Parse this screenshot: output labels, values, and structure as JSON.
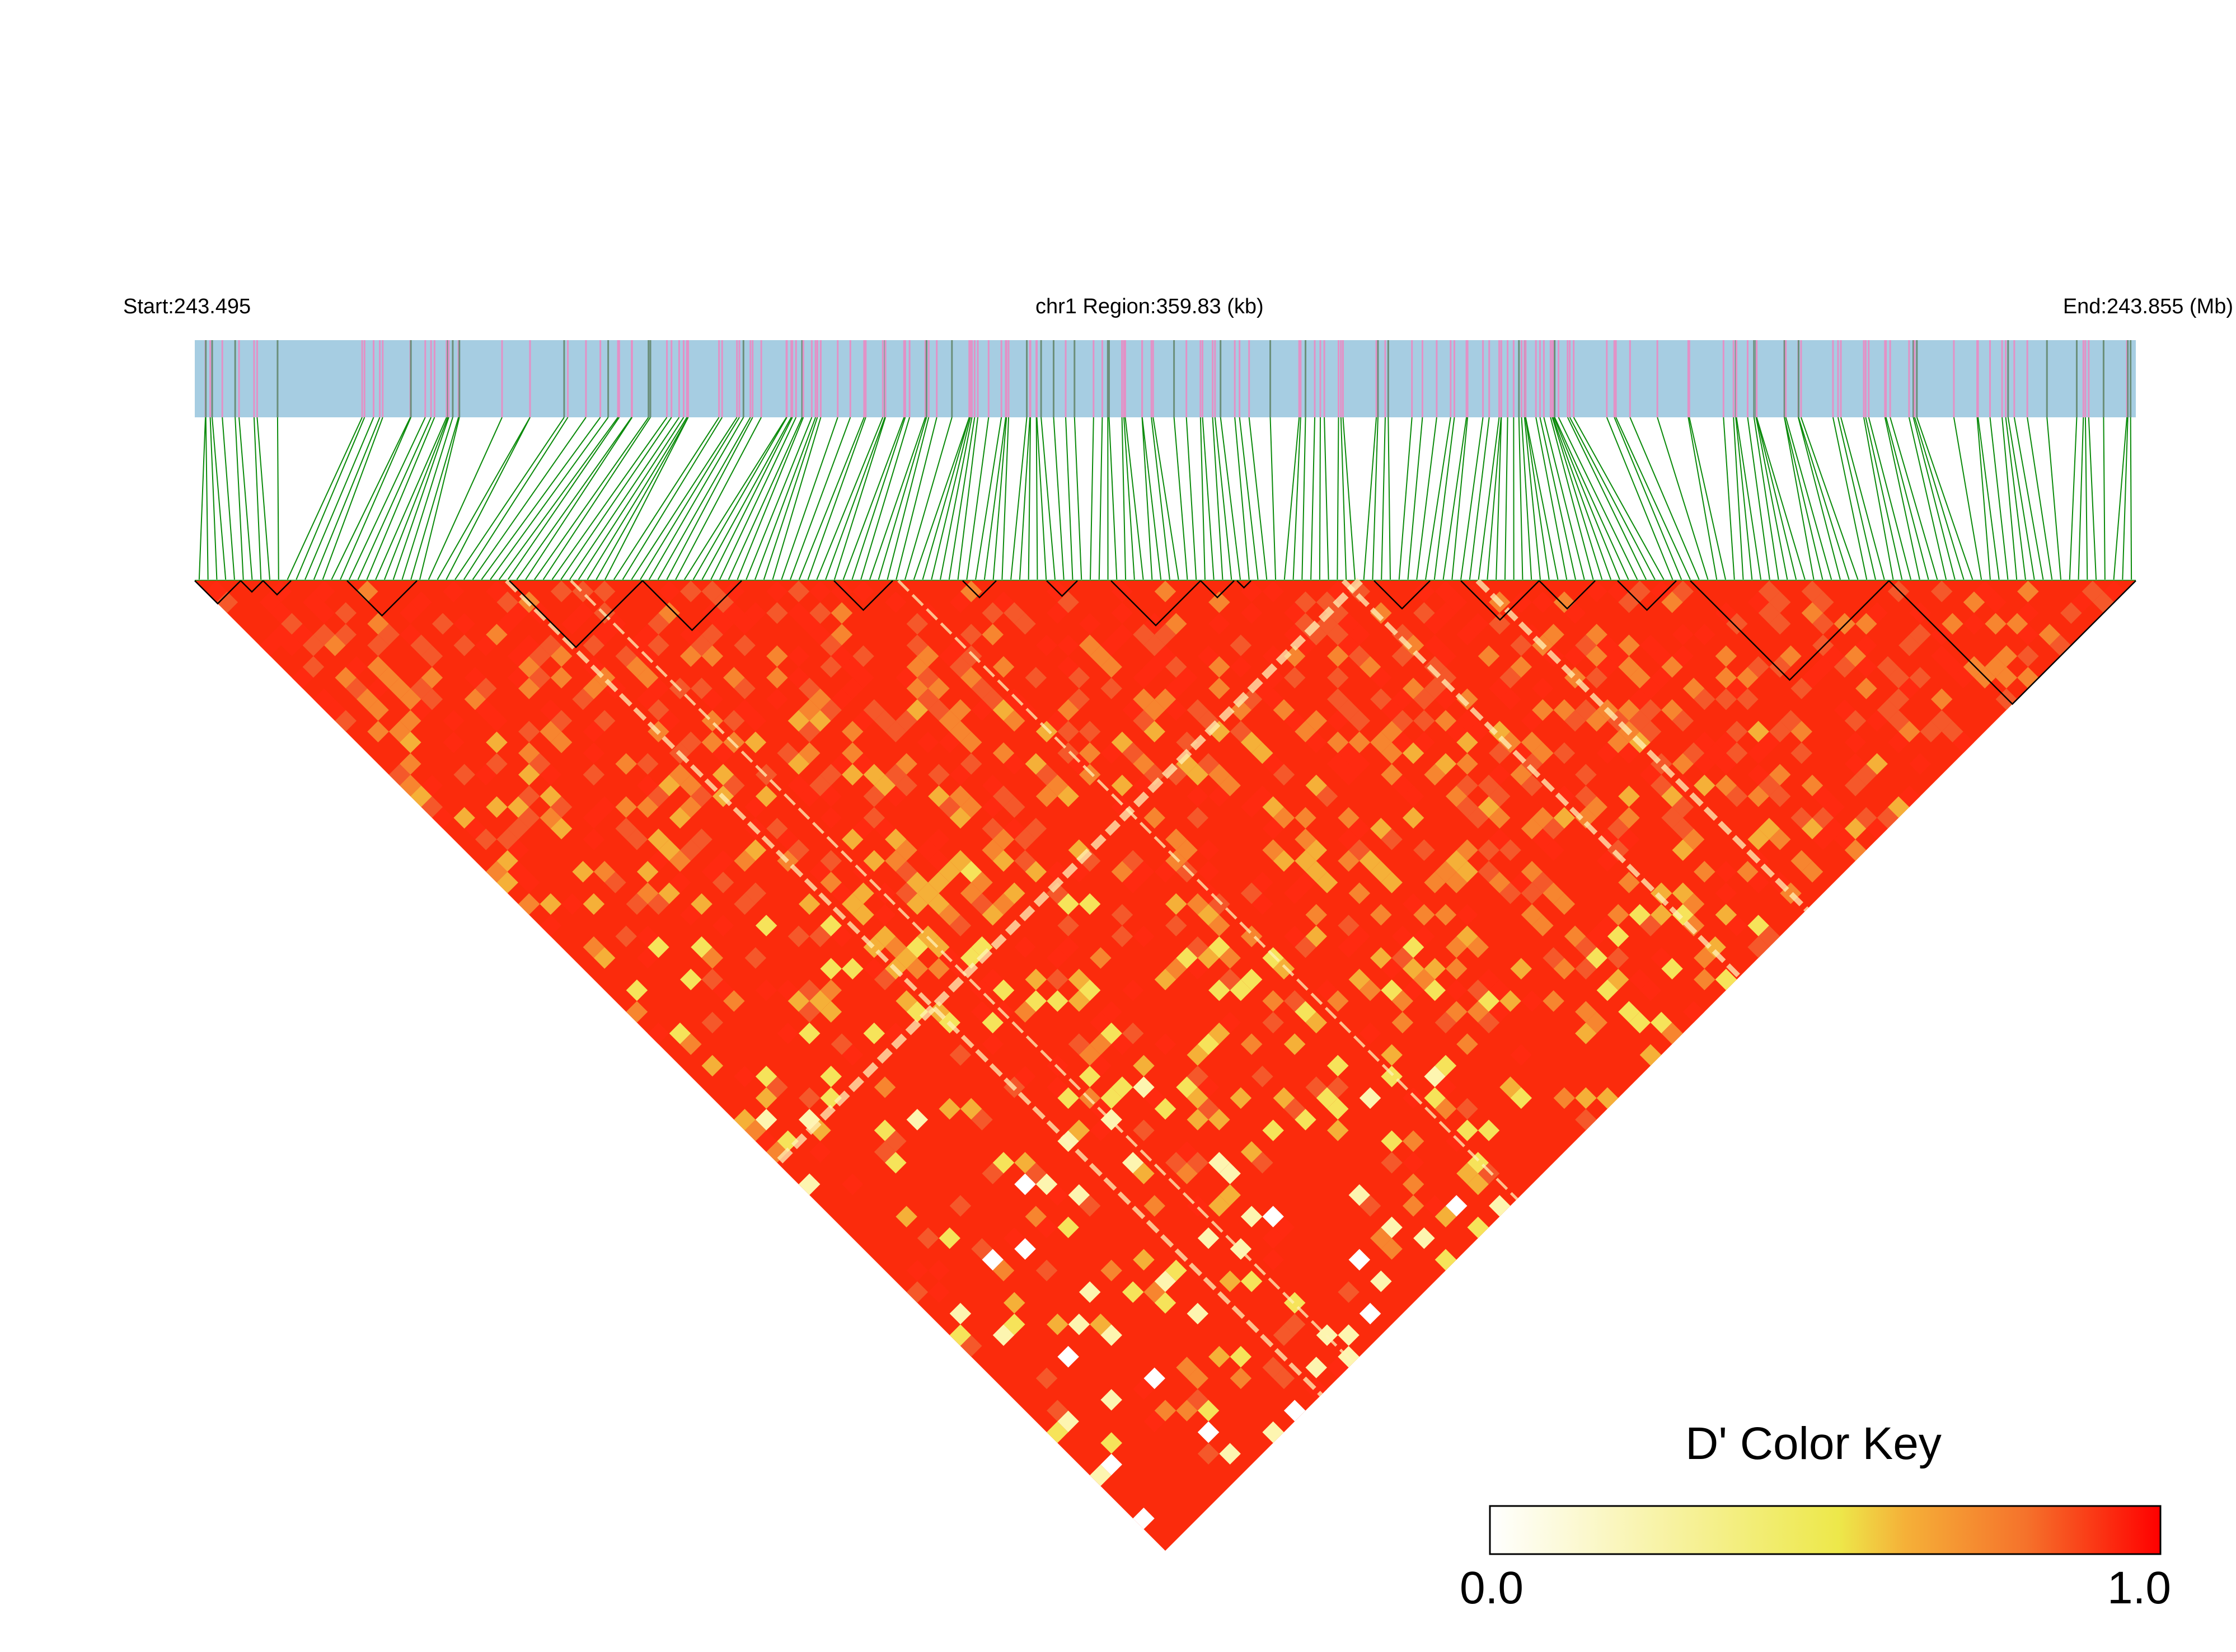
{
  "header": {
    "start_label": "Start:243.495",
    "region_label": "chr1 Region:359.83 (kb)",
    "end_label": "End:243.855 (Mb)"
  },
  "chart_data": {
    "type": "heatmap",
    "title": "",
    "chromosome": "chr1",
    "region_start_mb": 243.495,
    "region_end_mb": 243.855,
    "region_length_kb": 359.83,
    "metric": "D'",
    "value_range": [
      0.0,
      1.0
    ],
    "color_key": {
      "title": "D' Color Key",
      "min_label": "0.0",
      "max_label": "1.0",
      "stops": [
        "#ffffff",
        "#f8f3a8",
        "#ede84a",
        "#f5b038",
        "#f5722b",
        "#ff0000"
      ]
    },
    "colors": {
      "track_background": "#a6cde2",
      "snp_mark_primary": "#e391c6",
      "snp_mark_secondary": "#6b8f7a",
      "connector_lines": "#0a8a0a",
      "high_ld": "#ff0000"
    },
    "haplotype_blocks_outlined": true
  }
}
